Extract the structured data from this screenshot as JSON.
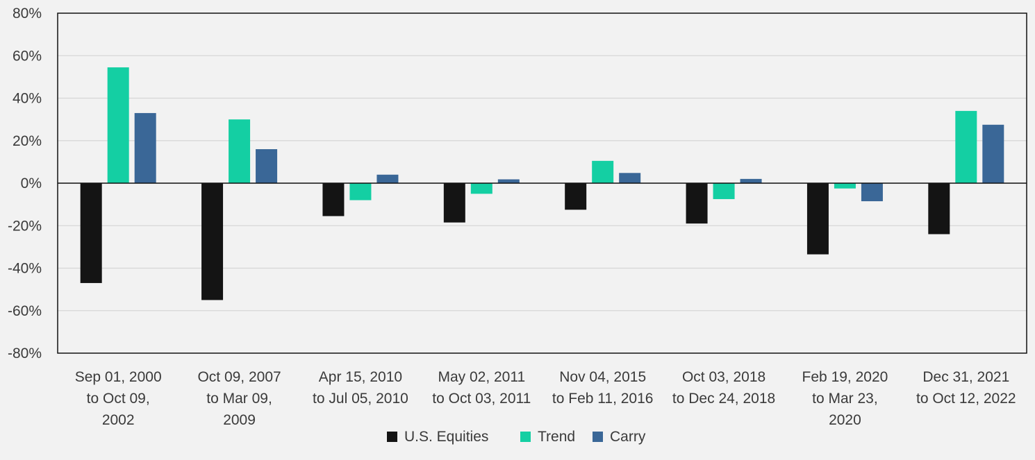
{
  "chart_data": {
    "type": "bar",
    "categories": [
      [
        "Sep 01, 2000",
        "to Oct 09,",
        "2002"
      ],
      [
        "Oct 09, 2007",
        "to Mar 09,",
        "2009"
      ],
      [
        "Apr 15, 2010",
        "to Jul 05, 2010"
      ],
      [
        "May 02, 2011",
        "to Oct 03, 2011"
      ],
      [
        "Nov 04, 2015",
        "to Feb 11, 2016"
      ],
      [
        "Oct 03, 2018",
        "to Dec 24, 2018"
      ],
      [
        "Feb 19, 2020",
        "to Mar 23,",
        "2020"
      ],
      [
        "Dec 31, 2021",
        "to Oct 12, 2022"
      ]
    ],
    "series": [
      {
        "name": "U.S. Equities",
        "color": "#141414",
        "values": [
          -47,
          -55,
          -15.5,
          -18.5,
          -12.5,
          -19,
          -33.5,
          -24
        ]
      },
      {
        "name": "Trend",
        "color": "#14cfa3",
        "values": [
          54.5,
          30,
          -8,
          -5,
          10.5,
          -7.5,
          -2.5,
          34
        ]
      },
      {
        "name": "Carry",
        "color": "#3a6797",
        "values": [
          33,
          16,
          4,
          1.8,
          4.8,
          2,
          -8.5,
          27.5
        ]
      }
    ],
    "yticks": [
      "80%",
      "60%",
      "40%",
      "20%",
      "0%",
      "-20%",
      "-40%",
      "-60%",
      "-80%"
    ],
    "ylim": [
      -80,
      80
    ],
    "grid": true,
    "legend_position": "bottom"
  }
}
